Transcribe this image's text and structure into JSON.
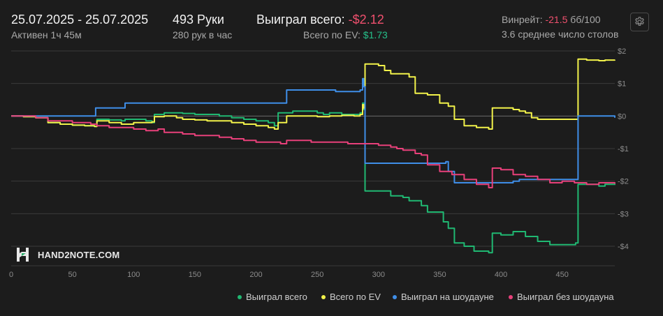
{
  "header": {
    "date_range": "25.07.2025 - 25.07.2025",
    "active": "Активен 1ч 45м",
    "hands": "493 Руки",
    "hands_per_hour": "280 рук в час",
    "won_total_label": "Выиграл всего:",
    "won_total_value": "-$2.12",
    "ev_label": "Всего по EV:",
    "ev_value": "$1.73",
    "winrate_label": "Винрейт:",
    "winrate_value": "-21.5",
    "winrate_unit": "бб/100",
    "avg_tables": "3.6 среднее число столов"
  },
  "logo_text": "HAND2NOTE.COM",
  "colors": {
    "background": "#1c1c1c",
    "won_total": "#20b872",
    "ev": "#f2f24a",
    "showdown": "#3f8ee8",
    "non_showdown": "#e8407a",
    "negative": "#f0506e",
    "positive": "#25c08a"
  },
  "icons": {
    "settings": "gear-icon"
  },
  "chart_data": {
    "type": "line",
    "title": "",
    "xlabel": "",
    "ylabel": "",
    "xlim": [
      0,
      493
    ],
    "ylim": [
      -4.5,
      2.0
    ],
    "x_ticks": [
      0,
      50,
      100,
      150,
      200,
      250,
      300,
      350,
      400,
      450
    ],
    "x_tick_labels": [
      "0",
      "50",
      "100",
      "150",
      "200",
      "250",
      "300",
      "350",
      "400",
      "450"
    ],
    "y_ticks": [
      2,
      1,
      0,
      -1,
      -2,
      -3,
      -4
    ],
    "y_tick_labels": [
      "$2",
      "$1",
      "$0",
      "-$1",
      "-$2",
      "-$3",
      "-$4"
    ],
    "grid": true,
    "legend_position": "bottom-right",
    "series": [
      {
        "name": "Выиграл всего",
        "color": "#20b872",
        "points": [
          [
            0,
            0
          ],
          [
            10,
            -0.02
          ],
          [
            20,
            -0.05
          ],
          [
            30,
            -0.2
          ],
          [
            40,
            -0.25
          ],
          [
            50,
            -0.28
          ],
          [
            60,
            -0.3
          ],
          [
            68,
            -0.32
          ],
          [
            70,
            -0.1
          ],
          [
            80,
            -0.12
          ],
          [
            90,
            -0.15
          ],
          [
            93,
            -0.1
          ],
          [
            100,
            -0.1
          ],
          [
            110,
            -0.15
          ],
          [
            115,
            -0.2
          ],
          [
            117,
            0.05
          ],
          [
            125,
            0.1
          ],
          [
            135,
            0.1
          ],
          [
            140,
            0.08
          ],
          [
            150,
            0.05
          ],
          [
            160,
            0.05
          ],
          [
            170,
            0.0
          ],
          [
            180,
            -0.05
          ],
          [
            190,
            -0.1
          ],
          [
            200,
            -0.15
          ],
          [
            210,
            -0.2
          ],
          [
            215,
            -0.3
          ],
          [
            218,
            0.1
          ],
          [
            225,
            0.1
          ],
          [
            230,
            0.15
          ],
          [
            240,
            0.15
          ],
          [
            250,
            0.1
          ],
          [
            255,
            0.05
          ],
          [
            260,
            0.1
          ],
          [
            270,
            0.05
          ],
          [
            280,
            0.05
          ],
          [
            285,
            0.1
          ],
          [
            287,
            0.4
          ],
          [
            288,
            0.2
          ],
          [
            289,
            -2.3
          ],
          [
            295,
            -2.3
          ],
          [
            305,
            -2.3
          ],
          [
            310,
            -2.45
          ],
          [
            320,
            -2.5
          ],
          [
            325,
            -2.6
          ],
          [
            330,
            -2.6
          ],
          [
            335,
            -2.75
          ],
          [
            340,
            -2.95
          ],
          [
            350,
            -2.95
          ],
          [
            353,
            -3.25
          ],
          [
            357,
            -3.45
          ],
          [
            362,
            -3.9
          ],
          [
            370,
            -4.0
          ],
          [
            378,
            -4.15
          ],
          [
            390,
            -4.2
          ],
          [
            393,
            -3.6
          ],
          [
            400,
            -3.65
          ],
          [
            410,
            -3.55
          ],
          [
            420,
            -3.7
          ],
          [
            430,
            -3.85
          ],
          [
            440,
            -3.95
          ],
          [
            450,
            -3.95
          ],
          [
            461,
            -3.9
          ],
          [
            463,
            -2.1
          ],
          [
            470,
            -2.1
          ],
          [
            480,
            -2.15
          ],
          [
            485,
            -2.1
          ],
          [
            493,
            -2.12
          ]
        ]
      },
      {
        "name": "Всего по EV",
        "color": "#f2f24a",
        "points": [
          [
            0,
            0
          ],
          [
            10,
            -0.02
          ],
          [
            20,
            -0.05
          ],
          [
            30,
            -0.2
          ],
          [
            40,
            -0.25
          ],
          [
            50,
            -0.28
          ],
          [
            60,
            -0.3
          ],
          [
            68,
            -0.32
          ],
          [
            70,
            -0.15
          ],
          [
            80,
            -0.2
          ],
          [
            90,
            -0.25
          ],
          [
            100,
            -0.2
          ],
          [
            110,
            -0.2
          ],
          [
            115,
            -0.18
          ],
          [
            117,
            -0.02
          ],
          [
            125,
            0.0
          ],
          [
            135,
            -0.05
          ],
          [
            140,
            -0.1
          ],
          [
            150,
            -0.12
          ],
          [
            160,
            -0.15
          ],
          [
            170,
            -0.15
          ],
          [
            180,
            -0.2
          ],
          [
            190,
            -0.25
          ],
          [
            200,
            -0.3
          ],
          [
            210,
            -0.35
          ],
          [
            215,
            -0.4
          ],
          [
            218,
            -0.2
          ],
          [
            225,
            0.0
          ],
          [
            230,
            0.0
          ],
          [
            240,
            0.0
          ],
          [
            250,
            -0.02
          ],
          [
            260,
            0.0
          ],
          [
            270,
            0.02
          ],
          [
            280,
            0.0
          ],
          [
            285,
            0.05
          ],
          [
            287,
            0.35
          ],
          [
            288,
            0.25
          ],
          [
            289,
            1.6
          ],
          [
            300,
            1.55
          ],
          [
            305,
            1.4
          ],
          [
            310,
            1.3
          ],
          [
            320,
            1.3
          ],
          [
            325,
            1.2
          ],
          [
            330,
            0.7
          ],
          [
            340,
            0.65
          ],
          [
            350,
            0.4
          ],
          [
            357,
            0.3
          ],
          [
            362,
            -0.1
          ],
          [
            370,
            -0.3
          ],
          [
            380,
            -0.35
          ],
          [
            390,
            -0.4
          ],
          [
            393,
            0.25
          ],
          [
            400,
            0.25
          ],
          [
            410,
            0.2
          ],
          [
            415,
            0.15
          ],
          [
            420,
            0.1
          ],
          [
            425,
            -0.05
          ],
          [
            430,
            -0.1
          ],
          [
            440,
            -0.1
          ],
          [
            450,
            -0.1
          ],
          [
            461,
            -0.1
          ],
          [
            463,
            1.75
          ],
          [
            470,
            1.72
          ],
          [
            480,
            1.7
          ],
          [
            485,
            1.72
          ],
          [
            493,
            1.73
          ]
        ]
      },
      {
        "name": "Выиграл на шоудауне",
        "color": "#3f8ee8",
        "points": [
          [
            0,
            0
          ],
          [
            68,
            0
          ],
          [
            69,
            0.25
          ],
          [
            90,
            0.25
          ],
          [
            93,
            0.4
          ],
          [
            150,
            0.4
          ],
          [
            200,
            0.4
          ],
          [
            224,
            0.4
          ],
          [
            225,
            0.8
          ],
          [
            260,
            0.8
          ],
          [
            265,
            0.75
          ],
          [
            280,
            0.75
          ],
          [
            285,
            0.8
          ],
          [
            287,
            1.15
          ],
          [
            288,
            0.9
          ],
          [
            289,
            -1.45
          ],
          [
            320,
            -1.45
          ],
          [
            340,
            -1.45
          ],
          [
            355,
            -1.4
          ],
          [
            357,
            -1.7
          ],
          [
            362,
            -2.05
          ],
          [
            390,
            -2.05
          ],
          [
            410,
            -2.0
          ],
          [
            415,
            -1.95
          ],
          [
            461,
            -1.95
          ],
          [
            463,
            0.0
          ],
          [
            493,
            -0.05
          ]
        ]
      },
      {
        "name": "Выиграл без шоудауна",
        "color": "#e8407a",
        "points": [
          [
            0,
            0
          ],
          [
            20,
            -0.05
          ],
          [
            30,
            -0.15
          ],
          [
            50,
            -0.2
          ],
          [
            65,
            -0.25
          ],
          [
            70,
            -0.3
          ],
          [
            80,
            -0.35
          ],
          [
            90,
            -0.35
          ],
          [
            100,
            -0.4
          ],
          [
            110,
            -0.45
          ],
          [
            120,
            -0.4
          ],
          [
            125,
            -0.5
          ],
          [
            130,
            -0.5
          ],
          [
            140,
            -0.55
          ],
          [
            150,
            -0.6
          ],
          [
            160,
            -0.6
          ],
          [
            170,
            -0.65
          ],
          [
            180,
            -0.7
          ],
          [
            190,
            -0.75
          ],
          [
            200,
            -0.8
          ],
          [
            210,
            -0.8
          ],
          [
            220,
            -0.85
          ],
          [
            225,
            -0.75
          ],
          [
            235,
            -0.75
          ],
          [
            245,
            -0.8
          ],
          [
            255,
            -0.8
          ],
          [
            265,
            -0.8
          ],
          [
            275,
            -0.85
          ],
          [
            285,
            -0.85
          ],
          [
            290,
            -0.85
          ],
          [
            300,
            -0.9
          ],
          [
            310,
            -0.95
          ],
          [
            315,
            -1.0
          ],
          [
            320,
            -1.05
          ],
          [
            330,
            -1.15
          ],
          [
            335,
            -1.2
          ],
          [
            340,
            -1.5
          ],
          [
            350,
            -1.7
          ],
          [
            360,
            -1.8
          ],
          [
            370,
            -1.95
          ],
          [
            380,
            -2.1
          ],
          [
            390,
            -2.2
          ],
          [
            393,
            -1.6
          ],
          [
            400,
            -1.65
          ],
          [
            410,
            -1.8
          ],
          [
            420,
            -1.85
          ],
          [
            430,
            -1.95
          ],
          [
            440,
            -2.05
          ],
          [
            450,
            -2.0
          ],
          [
            460,
            -2.05
          ],
          [
            470,
            -2.1
          ],
          [
            480,
            -2.05
          ],
          [
            493,
            -2.08
          ]
        ]
      }
    ]
  }
}
